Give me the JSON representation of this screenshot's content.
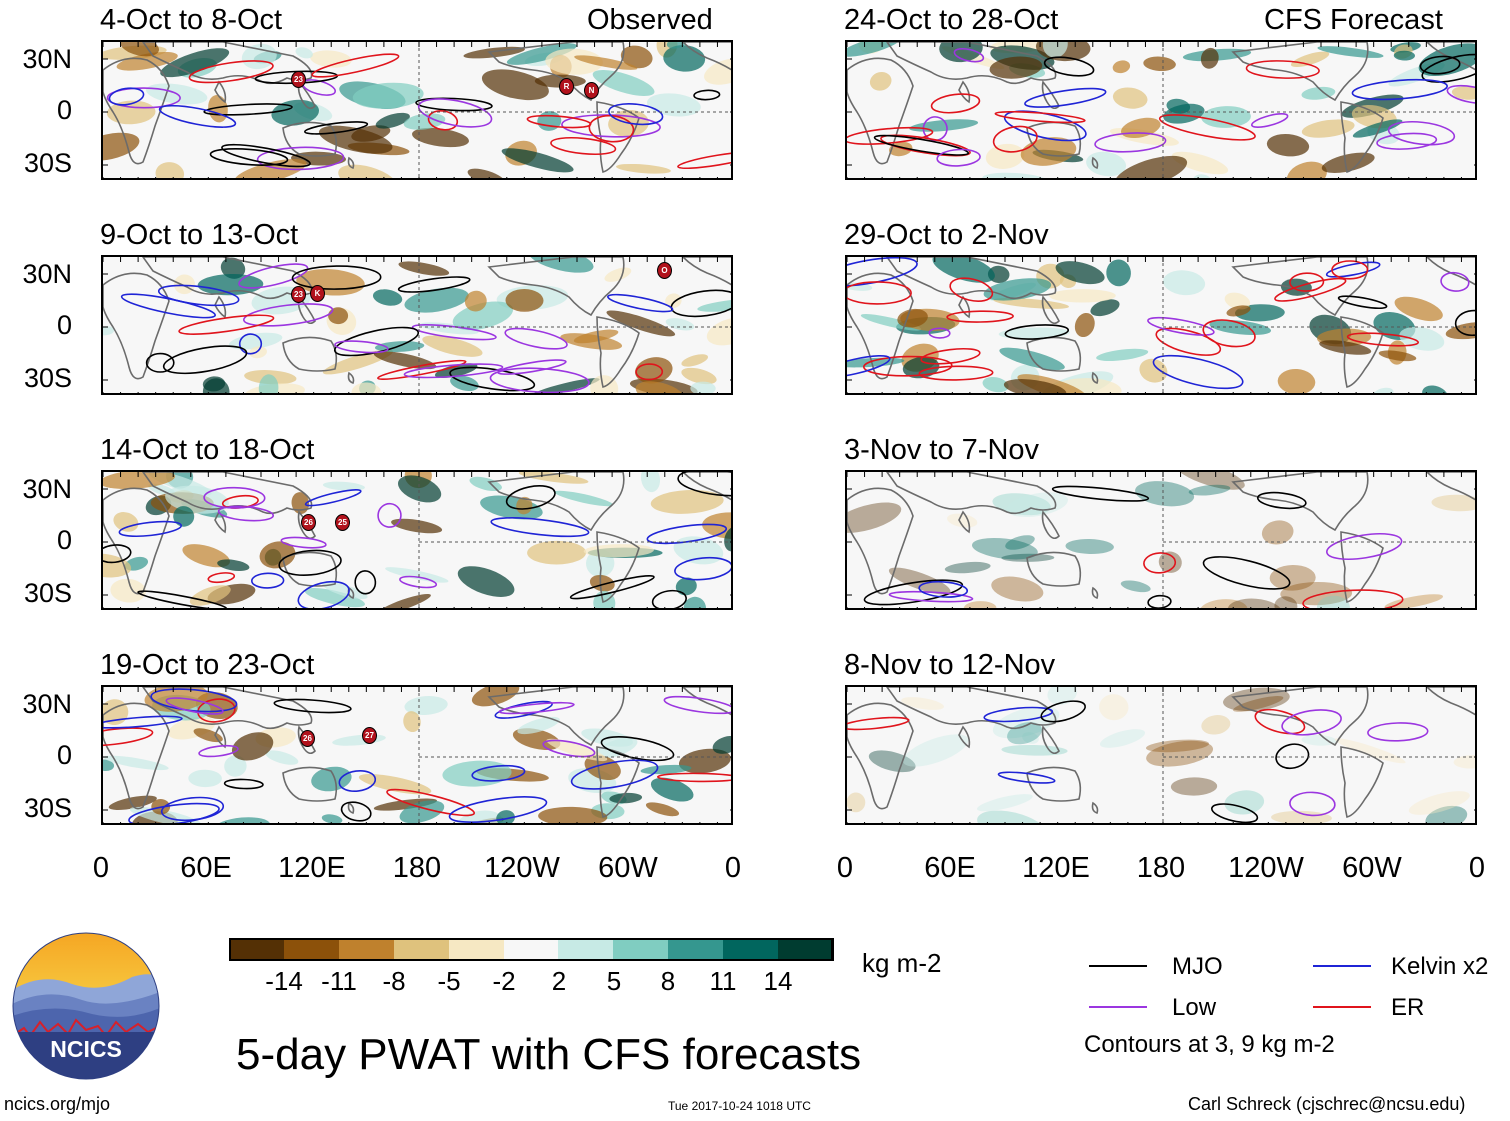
{
  "columns": {
    "observed_label": "Observed",
    "forecast_label": "CFS Forecast"
  },
  "panels": {
    "left": [
      {
        "period": "4-Oct to 8-Oct"
      },
      {
        "period": "9-Oct to 13-Oct"
      },
      {
        "period": "14-Oct to 18-Oct"
      },
      {
        "period": "19-Oct to 23-Oct"
      }
    ],
    "right": [
      {
        "period": "24-Oct to 28-Oct"
      },
      {
        "period": "29-Oct to 2-Nov"
      },
      {
        "period": "3-Nov to 7-Nov"
      },
      {
        "period": "8-Nov to 12-Nov"
      }
    ]
  },
  "axes": {
    "lat_labels": [
      "30N",
      "0",
      "30S"
    ],
    "lon_labels": [
      "0",
      "60E",
      "120E",
      "180",
      "120W",
      "60W",
      "0"
    ]
  },
  "storm_markers": {
    "p0": [
      "23",
      "R",
      "N"
    ],
    "p1": [
      "23",
      "K",
      "O"
    ],
    "p2": [
      "26",
      "25"
    ],
    "p3": [
      "26",
      "27"
    ]
  },
  "colorbar": {
    "ticks": [
      "-14",
      "-11",
      "-8",
      "-5",
      "-2",
      "2",
      "5",
      "8",
      "11",
      "14"
    ],
    "units": "kg m-2",
    "colors": [
      "#543005",
      "#8c510a",
      "#bf812d",
      "#dfc27d",
      "#f6e8c3",
      "#f7f7f7",
      "#c7eae5",
      "#80cdc1",
      "#35978f",
      "#01665e",
      "#003c30"
    ]
  },
  "legend": {
    "mjo": "MJO",
    "kelvin": "Kelvin x2",
    "low": "Low",
    "er": "ER",
    "contours_note": "Contours at 3, 9 kg m-2",
    "colors": {
      "mjo": "#000000",
      "kelvin": "#1f24d6",
      "low": "#9b36e0",
      "er": "#e0141c"
    }
  },
  "title": "5-day PWAT with CFS forecasts",
  "logo": {
    "text": "NCICS"
  },
  "footer": {
    "url": "ncics.org/mjo",
    "timestamp": "Tue 2017-10-24 1018 UTC",
    "author": "Carl Schreck (cjschrec@ncsu.edu)"
  }
}
